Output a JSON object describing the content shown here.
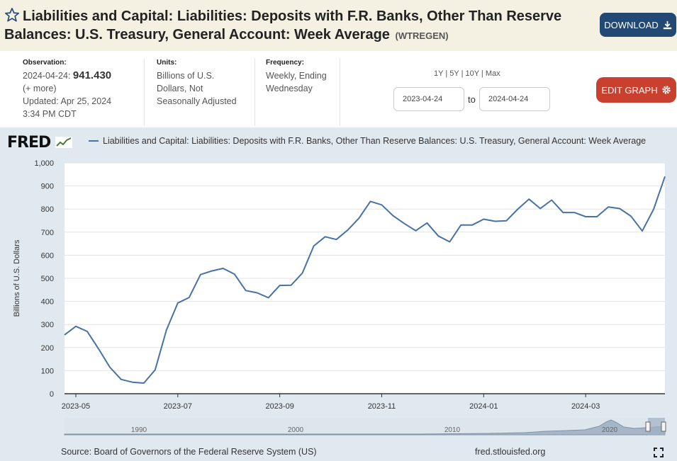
{
  "header": {
    "title": "Liabilities and Capital: Liabilities: Deposits with F.R. Banks, Other Than Reserve Balances: U.S. Treasury, General Account: Week Average",
    "series_id": "(WTREGEN)",
    "download_label": "DOWNLOAD"
  },
  "meta": {
    "observation_label": "Observation:",
    "observation_date": "2024-04-24:",
    "observation_value": "941.430",
    "more_label": "(+ more)",
    "updated": "Updated: Apr 25, 2024",
    "updated_time": "3:34 PM CDT",
    "units_label": "Units:",
    "units_value": "Billions of U.S. Dollars, Not Seasonally Adjusted",
    "frequency_label": "Frequency:",
    "frequency_value": "Weekly, Ending Wednesday",
    "ranges": [
      "1Y",
      "5Y",
      "10Y",
      "Max"
    ],
    "start_date": "2023-04-24",
    "end_date": "2024-04-24",
    "to_label": "to",
    "edit_label": "EDIT GRAPH"
  },
  "footer": {
    "source": "Source: Board of Governors of the Federal Reserve System (US)",
    "url": "fred.stlouisfed.org"
  },
  "logo_text": "FRED",
  "colors": {
    "series": "#4572a7",
    "download": "#224874",
    "edit": "#c9412e"
  },
  "chart_data": {
    "type": "line",
    "title": "Liabilities and Capital: Liabilities: Deposits with F.R. Banks, Other Than Reserve Balances: U.S. Treasury, General Account: Week Average",
    "legend": [
      "Liabilities and Capital: Liabilities: Deposits with F.R. Banks, Other Than Reserve Balances: U.S. Treasury, General Account: Week Average"
    ],
    "xlabel": "",
    "ylabel": "Billions of U.S. Dollars",
    "ylim": [
      0,
      1000
    ],
    "yticks": [
      0,
      100,
      200,
      300,
      400,
      500,
      600,
      700,
      800,
      900,
      1000
    ],
    "ytick_labels": [
      "0",
      "100",
      "200",
      "300",
      "400",
      "500",
      "600",
      "700",
      "800",
      "900",
      "1,000"
    ],
    "xticks": [
      {
        "label": "2023-05",
        "week": 1
      },
      {
        "label": "2023-07",
        "week": 10
      },
      {
        "label": "2023-09",
        "week": 19
      },
      {
        "label": "2023-11",
        "week": 28
      },
      {
        "label": "2024-01",
        "week": 37
      },
      {
        "label": "2024-03",
        "week": 46
      }
    ],
    "x_start": "2023-04-26",
    "x_end": "2024-04-24",
    "values": [
      255,
      292,
      270,
      195,
      115,
      62,
      50,
      46,
      103,
      276,
      393,
      417,
      516,
      532,
      543,
      518,
      447,
      437,
      416,
      469,
      470,
      523,
      640,
      680,
      668,
      709,
      761,
      833,
      818,
      771,
      737,
      706,
      740,
      683,
      658,
      731,
      731,
      756,
      747,
      749,
      799,
      843,
      802,
      839,
      785,
      785,
      767,
      767,
      809,
      802,
      769,
      705,
      799,
      941
    ],
    "navigator_labels": [
      "1990",
      "2000",
      "2010",
      "2020"
    ]
  }
}
